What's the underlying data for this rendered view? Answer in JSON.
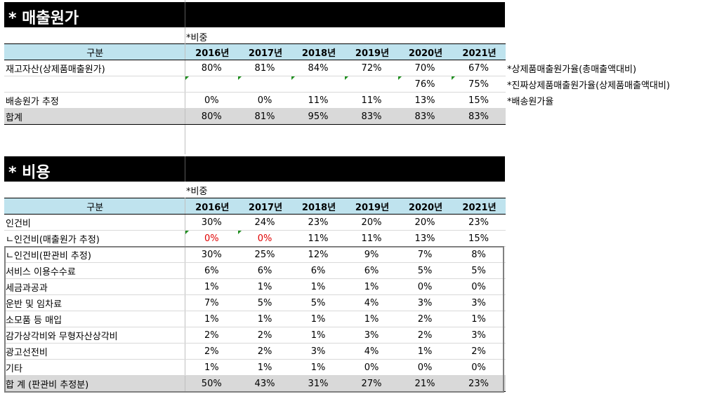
{
  "section1": {
    "title": "* 매출원가",
    "note": "*비중",
    "header": {
      "label": "구분",
      "years": [
        "2016년",
        "2017년",
        "2018년",
        "2019년",
        "2020년",
        "2021년"
      ]
    },
    "rows": [
      {
        "label": "재고자산(상제품매출원가)",
        "values": [
          "80%",
          "81%",
          "84%",
          "72%",
          "70%",
          "67%"
        ]
      },
      {
        "label": "",
        "values": [
          "",
          "",
          "",
          "",
          "76%",
          "75%"
        ]
      },
      {
        "label": "배송원가 추정",
        "values": [
          "0%",
          "0%",
          "11%",
          "11%",
          "13%",
          "15%"
        ]
      }
    ],
    "total": {
      "label": "합계",
      "values": [
        "80%",
        "81%",
        "95%",
        "83%",
        "83%",
        "83%"
      ]
    },
    "side_notes": [
      "*상제품매출원가율(총매출액대비)",
      "*진짜상제품매출원가율(상제품매출액대비)",
      "*배송원가율"
    ]
  },
  "section2": {
    "title": "* 비용",
    "note": "*비중",
    "header": {
      "label": "구분",
      "years": [
        "2016년",
        "2017년",
        "2018년",
        "2019년",
        "2020년",
        "2021년"
      ]
    },
    "rows": [
      {
        "label": "인건비",
        "values": [
          "30%",
          "24%",
          "23%",
          "20%",
          "20%",
          "23%"
        ]
      },
      {
        "label": "ㄴ인건비(매출원가 추정)",
        "values": [
          "0%",
          "0%",
          "11%",
          "11%",
          "13%",
          "15%"
        ]
      },
      {
        "label": "ㄴ인건비(판관비 추정)",
        "values": [
          "30%",
          "25%",
          "12%",
          "9%",
          "7%",
          "8%"
        ]
      },
      {
        "label": "서비스 이용수수료",
        "values": [
          "6%",
          "6%",
          "6%",
          "6%",
          "5%",
          "5%"
        ]
      },
      {
        "label": "세금과공과",
        "values": [
          "1%",
          "1%",
          "1%",
          "1%",
          "0%",
          "0%"
        ]
      },
      {
        "label": "운반 및 임차료",
        "values": [
          "7%",
          "5%",
          "5%",
          "4%",
          "3%",
          "3%"
        ]
      },
      {
        "label": "소모품 등 매입",
        "values": [
          "1%",
          "1%",
          "1%",
          "1%",
          "2%",
          "1%"
        ]
      },
      {
        "label": "감가상각비와 무형자산상각비",
        "values": [
          "2%",
          "2%",
          "1%",
          "3%",
          "2%",
          "3%"
        ]
      },
      {
        "label": "광고선전비",
        "values": [
          "2%",
          "2%",
          "3%",
          "4%",
          "1%",
          "2%"
        ]
      },
      {
        "label": "기타",
        "values": [
          "1%",
          "1%",
          "1%",
          "0%",
          "0%",
          "0%"
        ]
      }
    ],
    "total": {
      "label": "합 계 (판관비 추정분)",
      "values": [
        "50%",
        "43%",
        "31%",
        "27%",
        "21%",
        "23%"
      ]
    }
  }
}
